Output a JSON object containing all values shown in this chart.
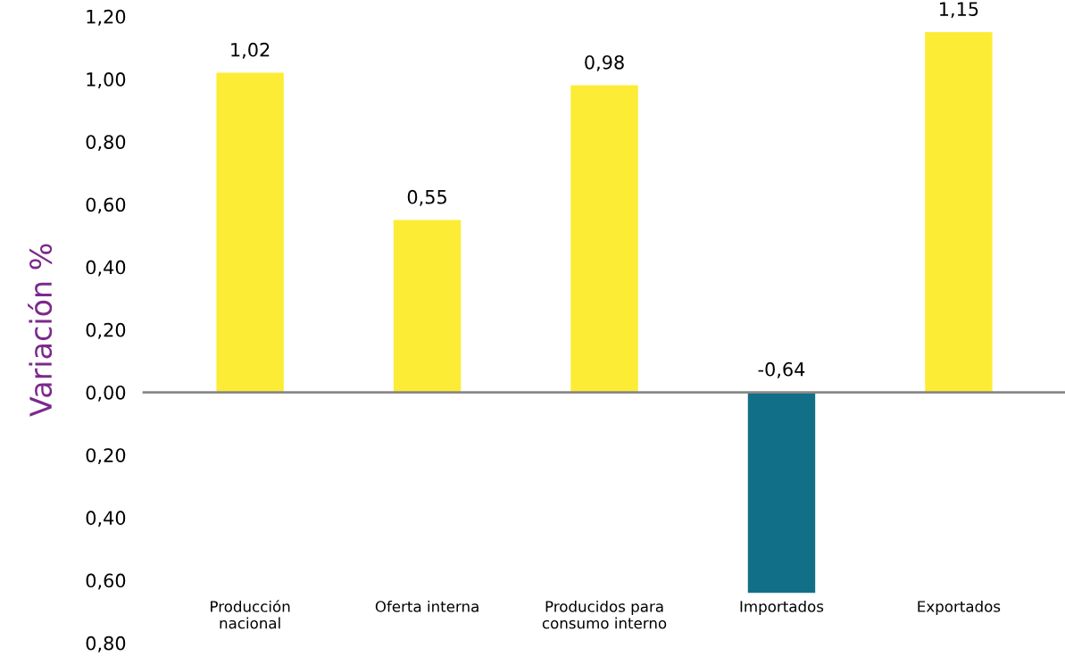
{
  "chart_data": {
    "type": "bar",
    "ylabel": "Variación %",
    "categories": [
      "Producción\nnacional",
      "Oferta interna",
      "Producidos para\nconsumo interno",
      "Importados",
      "Exportados"
    ],
    "values": [
      1.02,
      0.55,
      0.98,
      -0.64,
      1.15
    ],
    "colors": [
      "#fdec35",
      "#fdec35",
      "#fdec35",
      "#116f88",
      "#fdec35"
    ],
    "value_labels": [
      "1,02",
      "0,55",
      "0,98",
      "-0,64",
      "1,15"
    ],
    "ylim": [
      -0.8,
      1.2
    ],
    "yticks": [
      {
        "value": -0.8,
        "label": "0,80"
      },
      {
        "value": -0.6,
        "label": "0,60"
      },
      {
        "value": -0.4,
        "label": "0,40"
      },
      {
        "value": -0.2,
        "label": "0,20"
      },
      {
        "value": 0,
        "label": "0,00"
      },
      {
        "value": 0.2,
        "label": "0,20"
      },
      {
        "value": 0.4,
        "label": "0,40"
      },
      {
        "value": 0.6,
        "label": "0,60"
      },
      {
        "value": 0.8,
        "label": "0,80"
      },
      {
        "value": 1.0,
        "label": "1,00"
      },
      {
        "value": 1.2,
        "label": "1,20"
      }
    ],
    "legend": false
  }
}
